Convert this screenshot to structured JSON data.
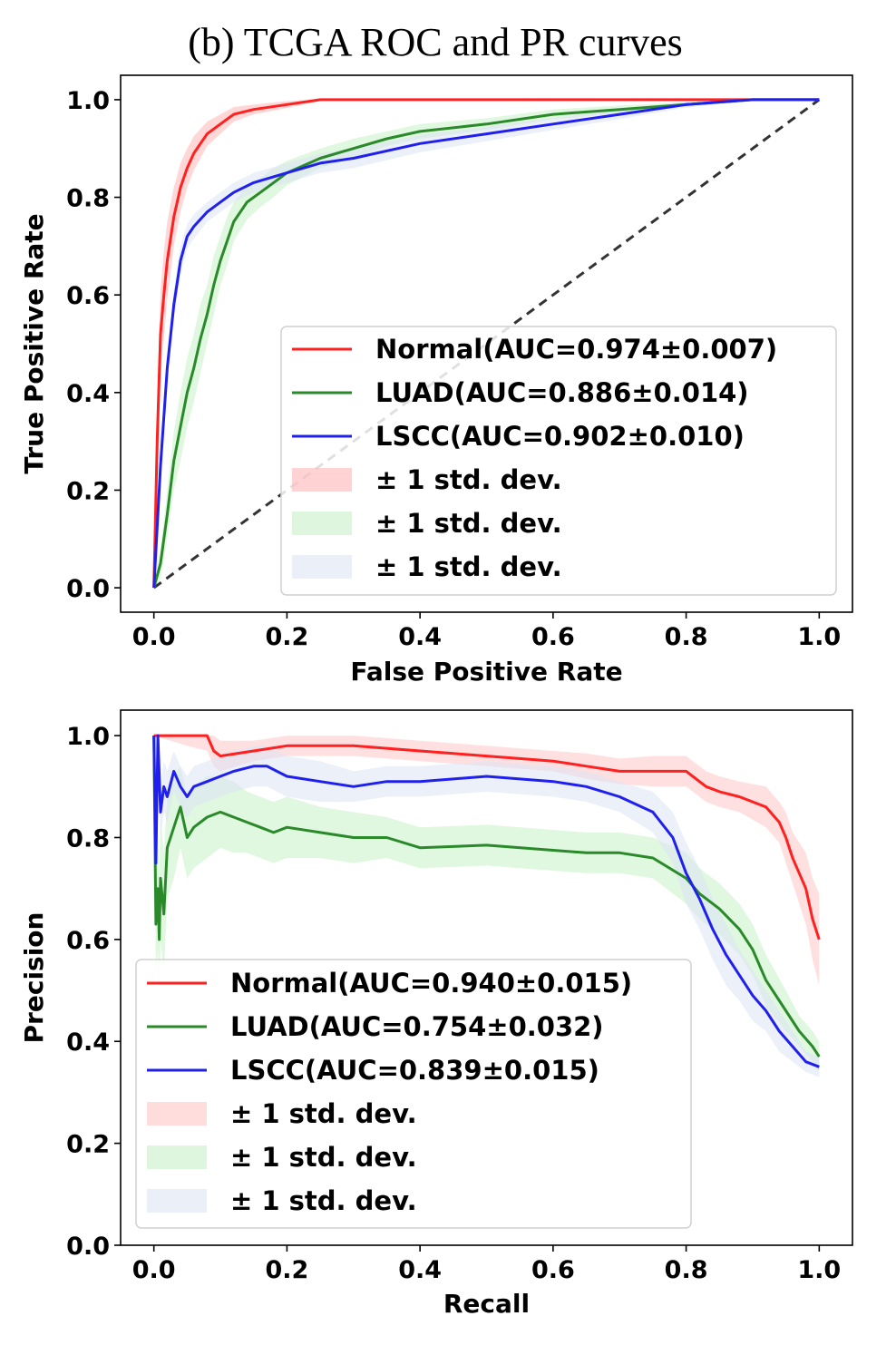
{
  "figure": {
    "title": "(b) TCGA ROC and PR curves"
  },
  "chart_data": [
    {
      "type": "line",
      "name": "roc",
      "xlabel": "False Positive Rate",
      "ylabel": "True Positive Rate",
      "xlim": [
        -0.05,
        1.05
      ],
      "ylim": [
        -0.05,
        1.05
      ],
      "xticks": [
        0.0,
        0.2,
        0.4,
        0.6,
        0.8,
        1.0
      ],
      "yticks": [
        0.0,
        0.2,
        0.4,
        0.6,
        0.8,
        1.0
      ],
      "xtick_labels": [
        "0.0",
        "0.2",
        "0.4",
        "0.6",
        "0.8",
        "1.0"
      ],
      "ytick_labels": [
        "0.0",
        "0.2",
        "0.4",
        "0.6",
        "0.8",
        "1.0"
      ],
      "grid": false,
      "legend_position": "lower-right",
      "diagonal": {
        "x": [
          0,
          1
        ],
        "y": [
          0,
          1
        ],
        "style": "dashed",
        "color": "#333333"
      },
      "series": [
        {
          "name": "Normal(AUC=0.974±0.007)",
          "color": "#ff2020",
          "x": [
            0,
            0.005,
            0.01,
            0.015,
            0.02,
            0.03,
            0.04,
            0.05,
            0.06,
            0.07,
            0.08,
            0.1,
            0.12,
            0.15,
            0.2,
            0.25,
            0.3,
            0.4,
            0.6,
            0.8,
            1.0
          ],
          "y": [
            0,
            0.3,
            0.52,
            0.6,
            0.67,
            0.76,
            0.82,
            0.86,
            0.89,
            0.91,
            0.93,
            0.95,
            0.97,
            0.98,
            0.99,
            1.0,
            1.0,
            1.0,
            1.0,
            1.0,
            1.0
          ],
          "band": {
            "name": "± 1 std. dev.",
            "color": "#ffb6b6",
            "width": [
              0,
              0.08,
              0.09,
              0.09,
              0.08,
              0.06,
              0.05,
              0.04,
              0.035,
              0.03,
              0.025,
              0.02,
              0.015,
              0.01,
              0.007,
              0.003,
              0,
              0,
              0,
              0,
              0
            ]
          }
        },
        {
          "name": "LUAD(AUC=0.886±0.014)",
          "color": "#2a8a2a",
          "x": [
            0,
            0.01,
            0.02,
            0.03,
            0.04,
            0.05,
            0.06,
            0.07,
            0.08,
            0.09,
            0.1,
            0.11,
            0.12,
            0.14,
            0.16,
            0.18,
            0.2,
            0.25,
            0.3,
            0.35,
            0.4,
            0.5,
            0.6,
            0.7,
            0.8,
            0.9,
            1.0
          ],
          "y": [
            0,
            0.05,
            0.15,
            0.26,
            0.33,
            0.4,
            0.45,
            0.51,
            0.56,
            0.62,
            0.67,
            0.71,
            0.75,
            0.79,
            0.81,
            0.83,
            0.85,
            0.88,
            0.9,
            0.92,
            0.935,
            0.95,
            0.97,
            0.98,
            0.99,
            1.0,
            1.0
          ],
          "band": {
            "name": "± 1 std. dev.",
            "color": "#c6f0c6",
            "width": [
              0,
              0.03,
              0.05,
              0.06,
              0.07,
              0.07,
              0.07,
              0.07,
              0.06,
              0.06,
              0.05,
              0.05,
              0.04,
              0.035,
              0.03,
              0.03,
              0.025,
              0.02,
              0.02,
              0.015,
              0.015,
              0.012,
              0.01,
              0.008,
              0.005,
              0.002,
              0
            ]
          }
        },
        {
          "name": "LSCC(AUC=0.902±0.010)",
          "color": "#2020ee",
          "x": [
            0,
            0.01,
            0.02,
            0.03,
            0.04,
            0.05,
            0.06,
            0.08,
            0.1,
            0.12,
            0.15,
            0.2,
            0.25,
            0.3,
            0.4,
            0.5,
            0.6,
            0.7,
            0.8,
            0.9,
            1.0
          ],
          "y": [
            0,
            0.25,
            0.45,
            0.58,
            0.67,
            0.72,
            0.74,
            0.77,
            0.79,
            0.81,
            0.83,
            0.85,
            0.87,
            0.88,
            0.91,
            0.93,
            0.95,
            0.97,
            0.99,
            1.0,
            1.0
          ],
          "band": {
            "name": "± 1 std. dev.",
            "color": "#dde4f4",
            "width": [
              0,
              0.03,
              0.03,
              0.03,
              0.03,
              0.025,
              0.025,
              0.02,
              0.02,
              0.02,
              0.02,
              0.02,
              0.02,
              0.02,
              0.018,
              0.015,
              0.012,
              0.01,
              0.006,
              0.002,
              0
            ]
          }
        }
      ]
    },
    {
      "type": "line",
      "name": "pr",
      "xlabel": "Recall",
      "ylabel": "Precision",
      "xlim": [
        -0.05,
        1.05
      ],
      "ylim": [
        0.0,
        1.05
      ],
      "xticks": [
        0.0,
        0.2,
        0.4,
        0.6,
        0.8,
        1.0
      ],
      "yticks": [
        0.0,
        0.2,
        0.4,
        0.6,
        0.8,
        1.0
      ],
      "xtick_labels": [
        "0.0",
        "0.2",
        "0.4",
        "0.6",
        "0.8",
        "1.0"
      ],
      "ytick_labels": [
        "0.0",
        "0.2",
        "0.4",
        "0.6",
        "0.8",
        "1.0"
      ],
      "grid": false,
      "legend_position": "lower-left",
      "series": [
        {
          "name": "Normal(AUC=0.940±0.015)",
          "color": "#ff2020",
          "x": [
            0,
            0.05,
            0.08,
            0.09,
            0.1,
            0.15,
            0.2,
            0.25,
            0.3,
            0.35,
            0.4,
            0.45,
            0.5,
            0.55,
            0.6,
            0.65,
            0.7,
            0.75,
            0.8,
            0.83,
            0.85,
            0.88,
            0.9,
            0.92,
            0.94,
            0.95,
            0.96,
            0.97,
            0.98,
            0.99,
            1.0
          ],
          "y": [
            1.0,
            1.0,
            1.0,
            0.97,
            0.96,
            0.97,
            0.98,
            0.98,
            0.98,
            0.975,
            0.97,
            0.965,
            0.96,
            0.955,
            0.95,
            0.94,
            0.93,
            0.93,
            0.93,
            0.9,
            0.89,
            0.88,
            0.87,
            0.86,
            0.83,
            0.8,
            0.76,
            0.73,
            0.7,
            0.64,
            0.6
          ],
          "band": {
            "name": "± 1 std. dev.",
            "color": "#ffc6c6",
            "width": [
              0,
              0.02,
              0.03,
              0.03,
              0.03,
              0.02,
              0.02,
              0.02,
              0.02,
              0.02,
              0.02,
              0.02,
              0.02,
              0.02,
              0.02,
              0.025,
              0.025,
              0.03,
              0.03,
              0.03,
              0.03,
              0.03,
              0.035,
              0.04,
              0.04,
              0.05,
              0.05,
              0.06,
              0.07,
              0.08,
              0.09
            ]
          }
        },
        {
          "name": "LUAD(AUC=0.754±0.032)",
          "color": "#2a8a2a",
          "x": [
            0,
            0.003,
            0.006,
            0.008,
            0.01,
            0.015,
            0.02,
            0.03,
            0.04,
            0.05,
            0.06,
            0.08,
            0.1,
            0.12,
            0.14,
            0.16,
            0.18,
            0.2,
            0.25,
            0.3,
            0.35,
            0.4,
            0.5,
            0.6,
            0.65,
            0.7,
            0.75,
            0.8,
            0.82,
            0.85,
            0.88,
            0.9,
            0.92,
            0.95,
            0.97,
            0.99,
            1.0
          ],
          "y": [
            1.0,
            0.63,
            0.7,
            0.6,
            0.72,
            0.65,
            0.78,
            0.82,
            0.86,
            0.8,
            0.82,
            0.84,
            0.85,
            0.84,
            0.83,
            0.82,
            0.81,
            0.82,
            0.81,
            0.8,
            0.8,
            0.78,
            0.785,
            0.775,
            0.77,
            0.77,
            0.76,
            0.72,
            0.69,
            0.66,
            0.62,
            0.58,
            0.52,
            0.46,
            0.42,
            0.39,
            0.37
          ],
          "band": {
            "name": "± 1 std. dev.",
            "color": "#c6f0c6",
            "width": [
              0,
              0.1,
              0.12,
              0.12,
              0.12,
              0.12,
              0.1,
              0.1,
              0.08,
              0.08,
              0.08,
              0.08,
              0.07,
              0.07,
              0.06,
              0.06,
              0.06,
              0.06,
              0.05,
              0.05,
              0.04,
              0.04,
              0.04,
              0.04,
              0.04,
              0.04,
              0.04,
              0.05,
              0.05,
              0.05,
              0.05,
              0.05,
              0.05,
              0.04,
              0.03,
              0.03,
              0.03
            ]
          }
        },
        {
          "name": "LSCC(AUC=0.839±0.015)",
          "color": "#2020ee",
          "x": [
            0,
            0.003,
            0.006,
            0.01,
            0.015,
            0.02,
            0.03,
            0.04,
            0.05,
            0.06,
            0.08,
            0.1,
            0.12,
            0.15,
            0.17,
            0.2,
            0.25,
            0.3,
            0.35,
            0.4,
            0.45,
            0.5,
            0.55,
            0.6,
            0.65,
            0.7,
            0.75,
            0.78,
            0.8,
            0.82,
            0.84,
            0.86,
            0.88,
            0.9,
            0.92,
            0.94,
            0.96,
            0.98,
            1.0
          ],
          "y": [
            1.0,
            0.75,
            1.0,
            0.85,
            0.9,
            0.88,
            0.93,
            0.9,
            0.88,
            0.9,
            0.91,
            0.92,
            0.93,
            0.94,
            0.94,
            0.92,
            0.91,
            0.9,
            0.91,
            0.91,
            0.915,
            0.92,
            0.915,
            0.91,
            0.9,
            0.88,
            0.85,
            0.8,
            0.73,
            0.68,
            0.62,
            0.57,
            0.53,
            0.49,
            0.46,
            0.42,
            0.39,
            0.36,
            0.35
          ],
          "band": {
            "name": "± 1 std. dev.",
            "color": "#dde4f4",
            "width": [
              0,
              0.05,
              0.05,
              0.05,
              0.05,
              0.05,
              0.04,
              0.04,
              0.04,
              0.04,
              0.04,
              0.04,
              0.04,
              0.04,
              0.04,
              0.04,
              0.04,
              0.03,
              0.03,
              0.03,
              0.03,
              0.03,
              0.03,
              0.03,
              0.03,
              0.03,
              0.04,
              0.05,
              0.06,
              0.06,
              0.06,
              0.06,
              0.05,
              0.05,
              0.04,
              0.04,
              0.03,
              0.02,
              0.02
            ]
          }
        }
      ]
    }
  ]
}
